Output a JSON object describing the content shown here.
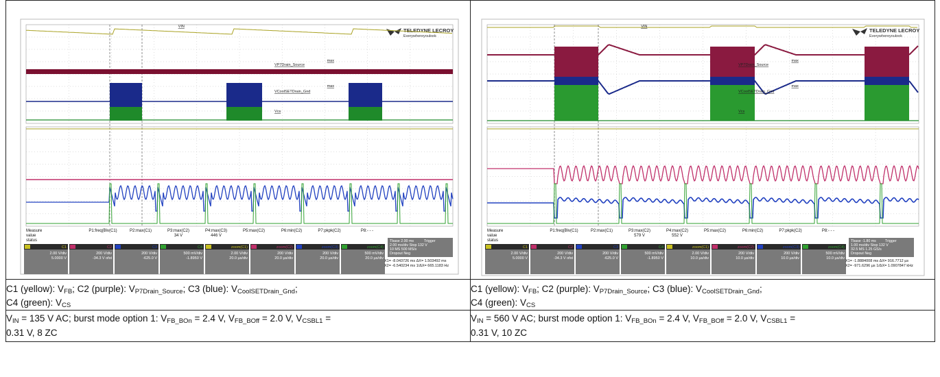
{
  "panels": [
    {
      "scope": {
        "logo": "TELEDYNE LECROY",
        "tagline": "Everywhereyoulook",
        "labels": {
          "vin": "VIN",
          "vp7": "VP7Drain_Source",
          "vcool": "VCoolSETDrain_Gnd",
          "vcs": "Vcs",
          "max": "max"
        },
        "measure": [
          "Measure",
          "value",
          "status"
        ],
        "params": [
          {
            "name": "P1:freq(Blv(C1)"
          },
          {
            "name": "P2:max(C1)"
          },
          {
            "name": "P3:max(C2)",
            "value": "34 V"
          },
          {
            "name": "P4:max(C3)",
            "value": "446 V"
          },
          {
            "name": "P5:max(C2)"
          },
          {
            "name": "P6:min(C2)"
          },
          {
            "name": "P7:pkpk(C2)"
          },
          {
            "name": "P8:- - -"
          }
        ],
        "channels": [
          {
            "name": "C1",
            "scale": "2.00 V/div",
            "offset": "5.0000 V"
          },
          {
            "name": "C2",
            "scale": "200 V/div",
            "offset": "-34.3 V ofst"
          },
          {
            "name": "C3",
            "scale": "200 V/div",
            "offset": "-625.0 V"
          },
          {
            "name": "C4",
            "scale": "500 mV/div",
            "offset": "-1.8950 V"
          },
          {
            "name": "zoom(C1)",
            "scale": "2.00 V/div",
            "offset": "20.0 µs/div"
          },
          {
            "name": "zoom(C2)",
            "scale": "200 V/div",
            "offset": "20.0 µs/div"
          },
          {
            "name": "zoom(C3)",
            "scale": "200 V/div",
            "offset": "20.0 µs/div"
          },
          {
            "name": "zoom(C4)",
            "scale": "500 mV/div",
            "offset": "20.0 µs/div"
          }
        ],
        "timebase": [
          "Tbase 2.00 ms",
          "Trigger",
          "2.00 ms/div  Stop 132 V",
          "10 MS 500 MS/s",
          "Dropout Neg"
        ],
        "cursors": [
          "X1= -8.043726 ms   ΔX= 1.503492 ms",
          "X2= -6.540234 ms  1/ΔX= 665.1183 Hz"
        ]
      },
      "channels_caption": [
        [
          {
            "t": "C1 (yellow): V",
            "sub": "FB"
          },
          {
            "t": "; C2 (purple): V",
            "sub": "P7Drain_Source"
          },
          {
            "t": "; C3 (blue): V",
            "sub": "CoolSETDrain_Gnd"
          },
          {
            "t": ";"
          }
        ],
        [
          {
            "t": "C4 (green): V",
            "sub": "CS"
          }
        ]
      ],
      "conditions": [
        [
          {
            "t": "V",
            "sub": "IN"
          },
          {
            "t": " = 135 V AC; burst mode option 1: V",
            "sub": "FB_BOn"
          },
          {
            "t": " = 2.4 V, V",
            "sub": "FB_BOff"
          },
          {
            "t": " = 2.0 V, V",
            "sub": "CSBL1"
          },
          {
            "t": " ="
          }
        ],
        [
          {
            "t": "0.31 V, 8 ZC"
          }
        ]
      ]
    },
    {
      "scope": {
        "logo": "TELEDYNE LECROY",
        "tagline": "Everywhereyoulook",
        "labels": {
          "vin": "VIN",
          "vp7": "VP7Drain_Source",
          "vcool": "VCoolSETDrain_Gnd",
          "vcs": "Vcs",
          "max": "max"
        },
        "measure": [
          "Measure",
          "value",
          "status"
        ],
        "params": [
          {
            "name": "P1:freq(Blv(C1)"
          },
          {
            "name": "P2:max(C1)"
          },
          {
            "name": "P3:max(C2)",
            "value": "579 V"
          },
          {
            "name": "P4:max(C2)",
            "value": "552 V"
          },
          {
            "name": "P5:max(C2)"
          },
          {
            "name": "P6:min(C2)"
          },
          {
            "name": "P7:pkpk(C2)"
          },
          {
            "name": "P8:- - -"
          }
        ],
        "channels": [
          {
            "name": "C1",
            "scale": "2.00 V/div",
            "offset": "5.0000 V"
          },
          {
            "name": "C2",
            "scale": "200 V/div",
            "offset": "-34.3 V ofst"
          },
          {
            "name": "C3",
            "scale": "200 V/div",
            "offset": "-625.0 V"
          },
          {
            "name": "C4",
            "scale": "500 mV/div",
            "offset": "-1.8950 V"
          },
          {
            "name": "zoom(C1)",
            "scale": "2.00 V/div",
            "offset": "10.0 µs/div"
          },
          {
            "name": "zoom(C2)",
            "scale": "200 V/div",
            "offset": "10.0 µs/div"
          },
          {
            "name": "zoom(C3)",
            "scale": "200 V/div",
            "offset": "10.0 µs/div"
          },
          {
            "name": "zoom(C4)",
            "scale": "500 mV/div",
            "offset": "10.0 µs/div"
          }
        ],
        "timebase": [
          "Tbase -1.80 ms",
          "Trigger",
          "1.00 ms/div  Stop 132 V",
          "32.5 MS 1.25 GS/s",
          "Dropout Neg"
        ],
        "cursors": [
          "X1= -1.8884008 ms   ΔX= 916.7712 µs",
          "X2= -971.6296 µs  1/ΔX= 1.0907847 kHz"
        ]
      },
      "channels_caption": [
        [
          {
            "t": "C1 (yellow): V",
            "sub": "FB"
          },
          {
            "t": "; C2 (purple): V",
            "sub": "P7Drain_Source"
          },
          {
            "t": "; C3 (blue): V",
            "sub": "CoolSETDrain_Gnd"
          },
          {
            "t": ";"
          }
        ],
        [
          {
            "t": "C4 (green): V",
            "sub": "CS"
          }
        ]
      ],
      "conditions": [
        [
          {
            "t": "V",
            "sub": "IN"
          },
          {
            "t": " = 560 V AC; burst mode option 1: V",
            "sub": "FB_BOn"
          },
          {
            "t": " = 2.4 V, V",
            "sub": "FB_BOff"
          },
          {
            "t": " = 2.0 V, V",
            "sub": "CSBL1"
          },
          {
            "t": " ="
          }
        ],
        [
          {
            "t": "0.31 V, 10 ZC"
          }
        ]
      ]
    }
  ]
}
